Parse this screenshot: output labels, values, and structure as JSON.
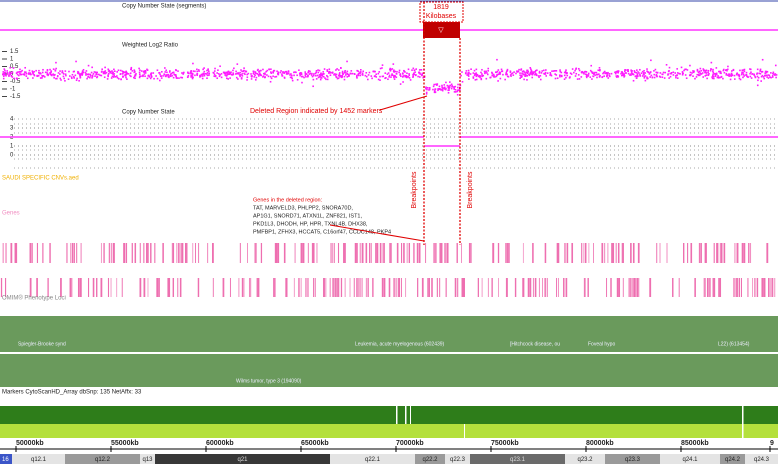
{
  "tracks": {
    "segments": "Copy Number State (segments)",
    "log2": "Weighted Log2 Ratio",
    "cn_state": "Copy Number State",
    "cnv": "SAUDI SPECIFIC CNVs.aed",
    "genes": "Genes",
    "omim": "OMIM® Phenotype Loci",
    "markers": "Markers CytoScanHD_Array dbSnp: 135 NetAffx: 33"
  },
  "log2_ticks": [
    1.5,
    1,
    0.5,
    0,
    -0.5,
    -1,
    -1.5
  ],
  "cn_ticks": [
    4,
    3,
    2,
    1,
    0
  ],
  "annotations": {
    "size_value": "1819",
    "size_unit": "Kilobases",
    "deleted": "Deleted Region indicated by 1452 markers",
    "breakpoint_left": "Breakpoints",
    "breakpoint_right": "Breakpoints",
    "genes_header": "Genes in the deleted region:",
    "genes_lines": [
      "TAT, MARVELD3, PHLPP2, SNORA70D,",
      "AP1G1, SNORD71, ATXN1L, ZNF821, IST1,",
      "PKD1L3, DHODH, HP, HPR, TXNL4B, DHX38,",
      "PMFBP1, ZFHX3, HCCAT5, C16orf47, CCDC148, PKP4"
    ]
  },
  "omim_labels": [
    "Spiegler-Brooke synd",
    "Leukemia, acute myelogenous (602439)",
    "[Hitchcock disease, ou",
    "Foveal hypo",
    "L22) (613454)",
    "Wilms tumor, type 3 (194090)"
  ],
  "axis_ticks": [
    "50000kb",
    "55000kb",
    "60000kb",
    "65000kb",
    "70000kb",
    "75000kb",
    "80000kb",
    "85000kb",
    "9"
  ],
  "chromosome": "16",
  "bands": [
    "q12.1",
    "q12.2",
    "q13",
    "q21",
    "q22.1",
    "q22.2",
    "q22.3",
    "q23.1",
    "q23.2",
    "q23.3",
    "q24.1",
    "q24.2",
    "q24.3"
  ]
}
